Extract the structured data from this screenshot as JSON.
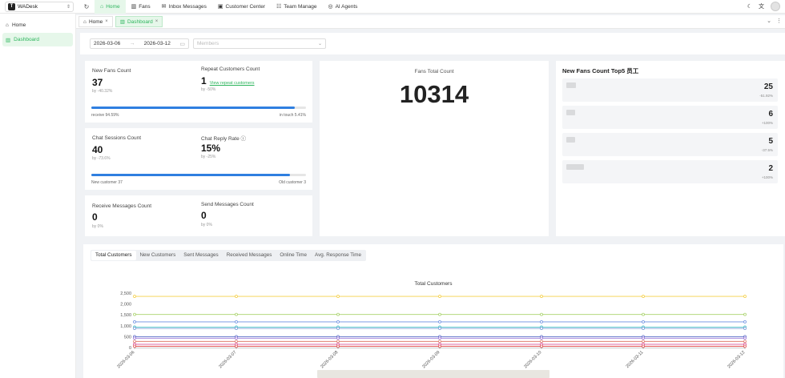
{
  "brand": {
    "logo": "T",
    "name": "WADesk"
  },
  "topnav": [
    {
      "label": "Home",
      "icon": "⌂",
      "active": true
    },
    {
      "label": "Fans",
      "icon": "▥",
      "active": false
    },
    {
      "label": "Inbox Messages",
      "icon": "✉",
      "active": false
    },
    {
      "label": "Customer Center",
      "icon": "▣",
      "active": false
    },
    {
      "label": "Team Manage",
      "icon": "☷",
      "active": false
    },
    {
      "label": "AI Agents",
      "icon": "◎",
      "active": false
    }
  ],
  "sidebar": [
    {
      "label": "Home",
      "icon": "⌂",
      "active": false
    },
    {
      "label": "Dashboard",
      "icon": "▥",
      "active": true
    }
  ],
  "page_tabs": [
    {
      "label": "Home",
      "icon": "⌂",
      "close": "×",
      "active": false
    },
    {
      "label": "Dashboard",
      "icon": "▥",
      "close": "×",
      "active": true
    }
  ],
  "filters": {
    "start_date": "2026-03-06",
    "range_sep": "→",
    "end_date": "2026-03-12",
    "members_placeholder": "Members"
  },
  "stats": {
    "new_fans": {
      "label": "New Fans Count",
      "value": "37",
      "sub": "by -40.32%"
    },
    "repeat_customers": {
      "label": "Repeat Customers Count",
      "value": "1",
      "link": "View repeat customers",
      "sub": "by -50%"
    },
    "bar1": {
      "fill": 0.9459,
      "left": "receive 94.59%",
      "right": "in touch 5.41%"
    },
    "chat_sessions": {
      "label": "Chat Sessions Count",
      "value": "40",
      "sub": "by -73.6%"
    },
    "chat_reply": {
      "label": "Chat Reply Rate ⓘ",
      "value": "15%",
      "sub": "by -25%"
    },
    "bar2": {
      "fill": 0.925,
      "left": "New customer 37",
      "right": "Old customer 3"
    },
    "receive_msgs": {
      "label": "Receive Messages Count",
      "value": "0",
      "sub": "by 0%"
    },
    "send_msgs": {
      "label": "Send Messages Count",
      "value": "0",
      "sub": "by 0%"
    }
  },
  "fans_total": {
    "label": "Fans Total Count",
    "value": "10314"
  },
  "top5": {
    "title": "New Fans Count Top5 员工",
    "rows": [
      {
        "value": "25",
        "pct": "-51.92%"
      },
      {
        "value": "6",
        "pct": "+100%"
      },
      {
        "value": "5",
        "pct": "-37.5%"
      },
      {
        "value": "2",
        "pct": "+100%"
      }
    ]
  },
  "chart_tabs": [
    {
      "label": "Total Customers",
      "active": true
    },
    {
      "label": "New Customers",
      "active": false
    },
    {
      "label": "Sent Messages",
      "active": false
    },
    {
      "label": "Received Messages",
      "active": false
    },
    {
      "label": "Online Time",
      "active": false
    },
    {
      "label": "Avg. Response Time",
      "active": false
    }
  ],
  "chart_data": {
    "type": "line",
    "title": "Total Customers",
    "x": [
      "2026-03-06",
      "2026-03-07",
      "2026-03-08",
      "2026-03-09",
      "2026-03-10",
      "2026-03-11",
      "2026-03-12"
    ],
    "yticks": [
      "0",
      "500",
      "1,000",
      "1,500",
      "2,000",
      "2,500"
    ],
    "ylim": [
      0,
      2500
    ],
    "grid": false,
    "series": [
      {
        "color": "#f5d04a",
        "values": [
          2350,
          2350,
          2350,
          2350,
          2350,
          2350,
          2350
        ]
      },
      {
        "color": "#a8d26a",
        "values": [
          1520,
          1520,
          1520,
          1520,
          1520,
          1520,
          1520
        ]
      },
      {
        "color": "#6b8fe0",
        "values": [
          1180,
          1180,
          1180,
          1180,
          1180,
          1180,
          1180
        ]
      },
      {
        "color": "#4fc6c9",
        "values": [
          940,
          940,
          940,
          940,
          940,
          940,
          940
        ]
      },
      {
        "color": "#7c9fd8",
        "values": [
          880,
          880,
          880,
          880,
          880,
          880,
          880
        ]
      },
      {
        "color": "#5a6ec8",
        "values": [
          500,
          500,
          500,
          500,
          500,
          500,
          500
        ]
      },
      {
        "color": "#9b7ad8",
        "values": [
          430,
          430,
          430,
          430,
          430,
          430,
          430
        ]
      },
      {
        "color": "#e08070",
        "values": [
          280,
          280,
          280,
          280,
          280,
          280,
          280
        ]
      },
      {
        "color": "#d9569a",
        "values": [
          150,
          150,
          150,
          150,
          150,
          150,
          150
        ]
      },
      {
        "color": "#e05050",
        "values": [
          60,
          60,
          60,
          60,
          60,
          60,
          60
        ]
      }
    ]
  }
}
